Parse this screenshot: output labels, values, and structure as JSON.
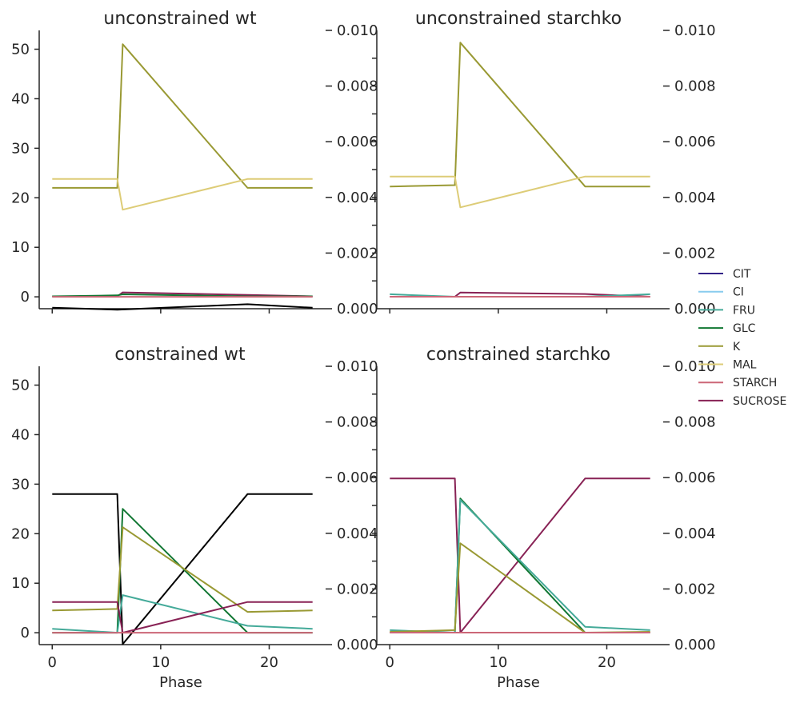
{
  "legend": {
    "entries": [
      {
        "name": "CIT",
        "color": "#332288"
      },
      {
        "name": "CI",
        "color": "#88CCEE"
      },
      {
        "name": "FRU",
        "color": "#44AA99"
      },
      {
        "name": "GLC",
        "color": "#117733"
      },
      {
        "name": "K",
        "color": "#999933"
      },
      {
        "name": "MAL",
        "color": "#DDCC77"
      },
      {
        "name": "STARCH",
        "color": "#CC6677"
      },
      {
        "name": "SUCROSE",
        "color": "#882255"
      }
    ]
  },
  "chart_data": [
    {
      "type": "line",
      "title": "unconstrained wt",
      "xlabel": "",
      "xlim": [
        -1.2,
        25.2
      ],
      "ylim": [
        -2.4,
        53.8
      ],
      "yticks": [
        0,
        10,
        20,
        30,
        40,
        50
      ],
      "y2lim": [
        0,
        0.01
      ],
      "y2ticks": [
        "0.000",
        "0.002",
        "0.004",
        "0.006",
        "0.008",
        "0.010"
      ],
      "xticks": [],
      "series": [
        {
          "name": "K",
          "color": "#999933",
          "axis": "left",
          "x": [
            0,
            6,
            6.5,
            18,
            24
          ],
          "y": [
            22.0,
            22.0,
            51.0,
            22.0,
            22.0
          ]
        },
        {
          "name": "MAL",
          "color": "#DDCC77",
          "axis": "left",
          "x": [
            0,
            6,
            6.5,
            18,
            24
          ],
          "y": [
            23.8,
            23.8,
            17.6,
            23.8,
            23.8
          ]
        },
        {
          "name": "SUCROSE",
          "color": "#882255",
          "axis": "left",
          "x": [
            0,
            6,
            6.5,
            18,
            24
          ],
          "y": [
            0.1,
            0.1,
            0.9,
            0.4,
            0.1
          ]
        },
        {
          "name": "GLC",
          "color": "#117733",
          "axis": "left",
          "x": [
            0,
            6,
            6.5,
            18,
            24
          ],
          "y": [
            0.1,
            0.3,
            0.5,
            0.1,
            0.1
          ]
        },
        {
          "name": "STARCH",
          "color": "#CC6677",
          "axis": "left",
          "x": [
            0,
            6,
            6.5,
            18,
            24
          ],
          "y": [
            0.0,
            0.0,
            0.0,
            0.0,
            0.0
          ]
        },
        {
          "name": "",
          "color": "#000000",
          "axis": "left",
          "x": [
            0,
            6,
            18,
            24
          ],
          "y": [
            -2.2,
            -2.6,
            -1.5,
            -2.2
          ]
        }
      ]
    },
    {
      "type": "line",
      "title": "unconstrained starchko",
      "xlabel": "",
      "xlim": [
        -1.2,
        25.2
      ],
      "ylim": [
        0,
        0.01
      ],
      "y2lim": [
        0,
        0.01
      ],
      "y2ticks": [
        "0.000",
        "0.002",
        "0.004",
        "0.006",
        "0.008",
        "0.010"
      ],
      "xticks": [],
      "series": [
        {
          "name": "K",
          "color": "#999933",
          "axis": "left",
          "x": [
            0,
            6,
            6.5,
            18,
            24
          ],
          "y": [
            0.00439,
            0.00444,
            0.00956,
            0.00439,
            0.00439
          ]
        },
        {
          "name": "MAL",
          "color": "#DDCC77",
          "axis": "left",
          "x": [
            0,
            6,
            6.5,
            18,
            24
          ],
          "y": [
            0.00475,
            0.00475,
            0.00364,
            0.00475,
            0.00475
          ]
        },
        {
          "name": "SUCROSE",
          "color": "#882255",
          "axis": "left",
          "x": [
            0,
            6,
            6.5,
            18,
            24
          ],
          "y": [
            0.00043,
            0.00043,
            0.00058,
            0.00053,
            0.00043
          ]
        },
        {
          "name": "FRU",
          "color": "#44AA99",
          "axis": "left",
          "x": [
            0,
            6,
            6.5,
            18,
            24
          ],
          "y": [
            0.00052,
            0.00043,
            0.00043,
            0.00043,
            0.00052
          ]
        },
        {
          "name": "STARCH",
          "color": "#CC6677",
          "axis": "left",
          "x": [
            0,
            6,
            6.5,
            18,
            24
          ],
          "y": [
            0.00043,
            0.00043,
            0.00043,
            0.00043,
            0.00043
          ]
        }
      ]
    },
    {
      "type": "line",
      "title": "constrained wt",
      "xlabel": "Phase",
      "xlim": [
        -1.2,
        25.2
      ],
      "ylim": [
        -2.4,
        53.8
      ],
      "yticks": [
        0,
        10,
        20,
        30,
        40,
        50
      ],
      "y2lim": [
        0,
        0.01
      ],
      "y2ticks": [
        "0.000",
        "0.002",
        "0.004",
        "0.006",
        "0.008",
        "0.010"
      ],
      "xticks": [
        0,
        10,
        20
      ],
      "series": [
        {
          "name": "",
          "color": "#000000",
          "axis": "left",
          "x": [
            0,
            6,
            6.5,
            18,
            24
          ],
          "y": [
            28.0,
            28.0,
            -2.3,
            28.0,
            28.0
          ]
        },
        {
          "name": "GLC",
          "color": "#117733",
          "axis": "left",
          "x": [
            0,
            6,
            6.5,
            18,
            24
          ],
          "y": [
            0.0,
            0.0,
            25.0,
            0.0,
            0.0
          ]
        },
        {
          "name": "K",
          "color": "#999933",
          "axis": "left",
          "x": [
            0,
            6,
            6.5,
            18,
            24
          ],
          "y": [
            4.5,
            4.8,
            21.3,
            4.2,
            4.5
          ]
        },
        {
          "name": "FRU",
          "color": "#44AA99",
          "axis": "left",
          "x": [
            0,
            6,
            6.5,
            18,
            24
          ],
          "y": [
            0.8,
            0.0,
            7.6,
            1.4,
            0.8
          ]
        },
        {
          "name": "SUCROSE",
          "color": "#882255",
          "axis": "left",
          "x": [
            0,
            6,
            6.5,
            18,
            24
          ],
          "y": [
            6.2,
            6.2,
            0.0,
            6.2,
            6.2
          ]
        },
        {
          "name": "STARCH",
          "color": "#CC6677",
          "axis": "left",
          "x": [
            0,
            6,
            6.5,
            18,
            24
          ],
          "y": [
            0.0,
            0.0,
            0.0,
            0.0,
            0.0
          ]
        }
      ]
    },
    {
      "type": "line",
      "title": "constrained starchko",
      "xlabel": "Phase",
      "xlim": [
        -1.2,
        25.2
      ],
      "ylim": [
        0,
        0.01
      ],
      "y2lim": [
        0,
        0.01
      ],
      "y2ticks": [
        "0.000",
        "0.002",
        "0.004",
        "0.006",
        "0.008",
        "0.010"
      ],
      "xticks": [
        0,
        10,
        20
      ],
      "series": [
        {
          "name": "SUCROSE",
          "color": "#882255",
          "axis": "left",
          "x": [
            0,
            6,
            6.5,
            18,
            24
          ],
          "y": [
            0.00597,
            0.00597,
            0.00043,
            0.00597,
            0.00597
          ]
        },
        {
          "name": "GLC",
          "color": "#117733",
          "axis": "left",
          "x": [
            0,
            6,
            6.5,
            18,
            24
          ],
          "y": [
            0.00043,
            0.00043,
            0.00525,
            0.00043,
            0.00043
          ]
        },
        {
          "name": "FRU",
          "color": "#44AA99",
          "axis": "left",
          "x": [
            0,
            6,
            6.5,
            18,
            24
          ],
          "y": [
            0.00052,
            0.00043,
            0.0052,
            0.00064,
            0.00052
          ]
        },
        {
          "name": "K",
          "color": "#999933",
          "axis": "left",
          "x": [
            0,
            6,
            6.5,
            18,
            24
          ],
          "y": [
            0.00046,
            0.00052,
            0.00364,
            0.00043,
            0.00046
          ]
        },
        {
          "name": "STARCH",
          "color": "#CC6677",
          "axis": "left",
          "x": [
            0,
            6,
            6.5,
            18,
            24
          ],
          "y": [
            0.00043,
            0.00043,
            0.00043,
            0.00043,
            0.00043
          ]
        }
      ]
    }
  ]
}
